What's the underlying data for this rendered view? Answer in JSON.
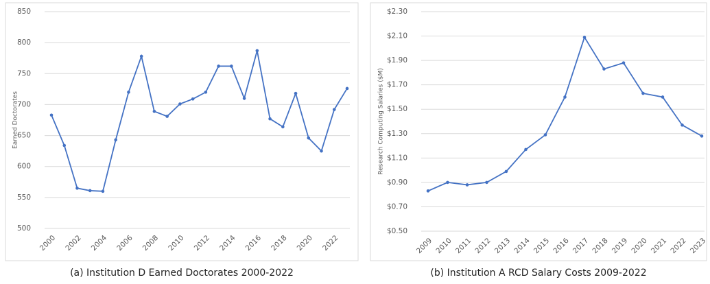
{
  "chart_data": [
    {
      "type": "line",
      "caption": "(a) Institution D Earned Doctorates 2000-2022",
      "ylabel": "Earned Doctorates",
      "x": [
        2000,
        2001,
        2002,
        2003,
        2004,
        2005,
        2006,
        2007,
        2008,
        2009,
        2010,
        2011,
        2012,
        2013,
        2014,
        2015,
        2016,
        2017,
        2018,
        2019,
        2020,
        2021,
        2022,
        2023
      ],
      "series": [
        {
          "color": "#4472c4",
          "values": [
            683,
            634,
            565,
            561,
            560,
            643,
            720,
            778,
            689,
            681,
            701,
            709,
            720,
            762,
            762,
            710,
            787,
            677,
            664,
            718,
            646,
            625,
            692,
            726
          ]
        }
      ],
      "xlim": [
        2000,
        2023
      ],
      "xticks": [
        2000,
        2002,
        2004,
        2006,
        2008,
        2010,
        2012,
        2014,
        2016,
        2018,
        2020,
        2022
      ],
      "ylim": [
        500,
        850
      ],
      "yticks": [
        500,
        550,
        600,
        650,
        700,
        750,
        800,
        850
      ],
      "grid": true
    },
    {
      "type": "line",
      "caption": "(b) Institution A RCD Salary Costs 2009-2022",
      "ylabel": "Research Computing Salaries ($M)",
      "categories": [
        "2009",
        "2010",
        "2011",
        "2012",
        "2013",
        "2014",
        "2015",
        "2016",
        "2017",
        "2018",
        "2019",
        "2020",
        "2021",
        "2022",
        "2023"
      ],
      "series": [
        {
          "color": "#4472c4",
          "values": [
            0.83,
            0.9,
            0.88,
            0.9,
            0.99,
            1.17,
            1.29,
            1.6,
            2.09,
            1.83,
            1.88,
            1.63,
            1.6,
            1.37,
            1.28
          ]
        }
      ],
      "ylim": [
        0.5,
        2.3
      ],
      "yticks": [
        {
          "value": 0.5,
          "label": "$0.50"
        },
        {
          "value": 0.7,
          "label": "$0.70"
        },
        {
          "value": 0.9,
          "label": "$0.90"
        },
        {
          "value": 1.1,
          "label": "$1.10"
        },
        {
          "value": 1.3,
          "label": "$1.30"
        },
        {
          "value": 1.5,
          "label": "$1.50"
        },
        {
          "value": 1.7,
          "label": "$1.70"
        },
        {
          "value": 1.9,
          "label": "$1.90"
        },
        {
          "value": 2.1,
          "label": "$2.10"
        },
        {
          "value": 2.3,
          "label": "$2.30"
        }
      ],
      "grid": true
    }
  ]
}
